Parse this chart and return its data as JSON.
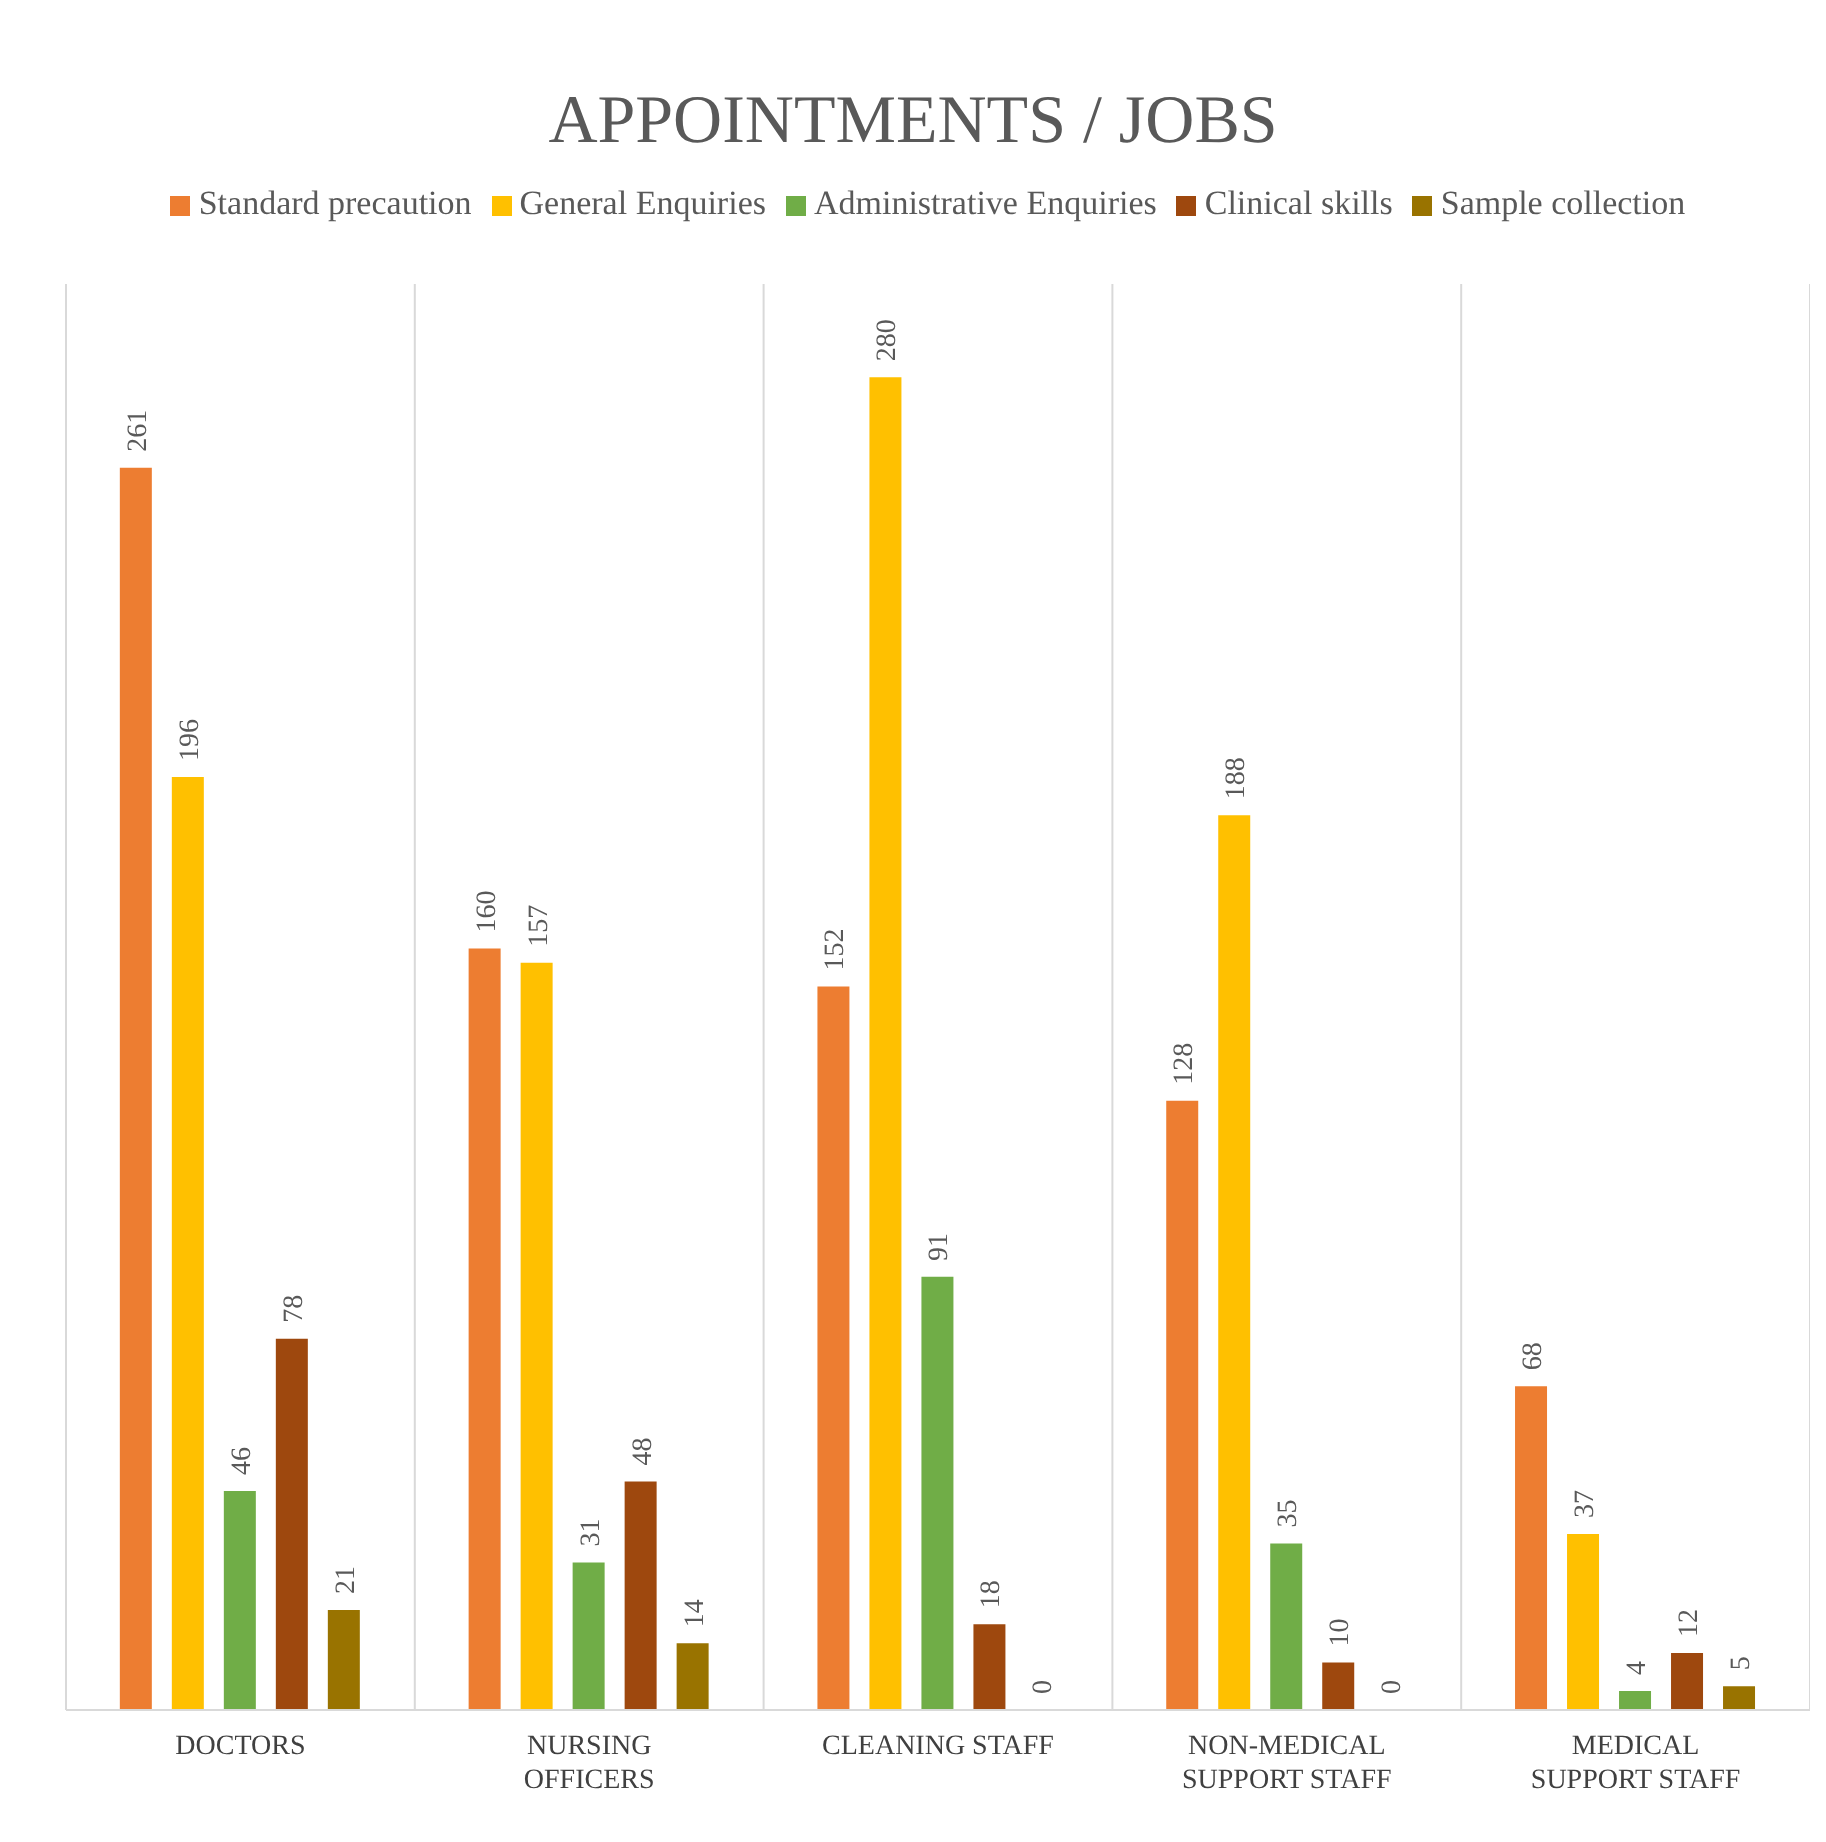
{
  "chart_data": {
    "type": "bar",
    "title": "APPOINTMENTS / JOBS",
    "categories": [
      "DOCTORS",
      "NURSING OFFICERS",
      "CLEANING STAFF",
      "NON-MEDICAL SUPPORT STAFF",
      "MEDICAL SUPPORT STAFF"
    ],
    "series": [
      {
        "name": "Standard precaution",
        "color": "#ed7d31",
        "values": [
          261,
          160,
          152,
          128,
          68
        ]
      },
      {
        "name": "General Enquiries",
        "color": "#ffc000",
        "values": [
          196,
          157,
          280,
          188,
          37
        ]
      },
      {
        "name": "Administrative Enquiries",
        "color": "#70ad47",
        "values": [
          46,
          31,
          91,
          35,
          4
        ]
      },
      {
        "name": "Clinical skills",
        "color": "#9e480e",
        "values": [
          78,
          48,
          18,
          10,
          12
        ]
      },
      {
        "name": "Sample collection",
        "color": "#997300",
        "values": [
          21,
          14,
          0,
          0,
          5
        ]
      }
    ],
    "data_labels": true,
    "grid": "x",
    "legend": "top",
    "tick_labels": "x"
  }
}
